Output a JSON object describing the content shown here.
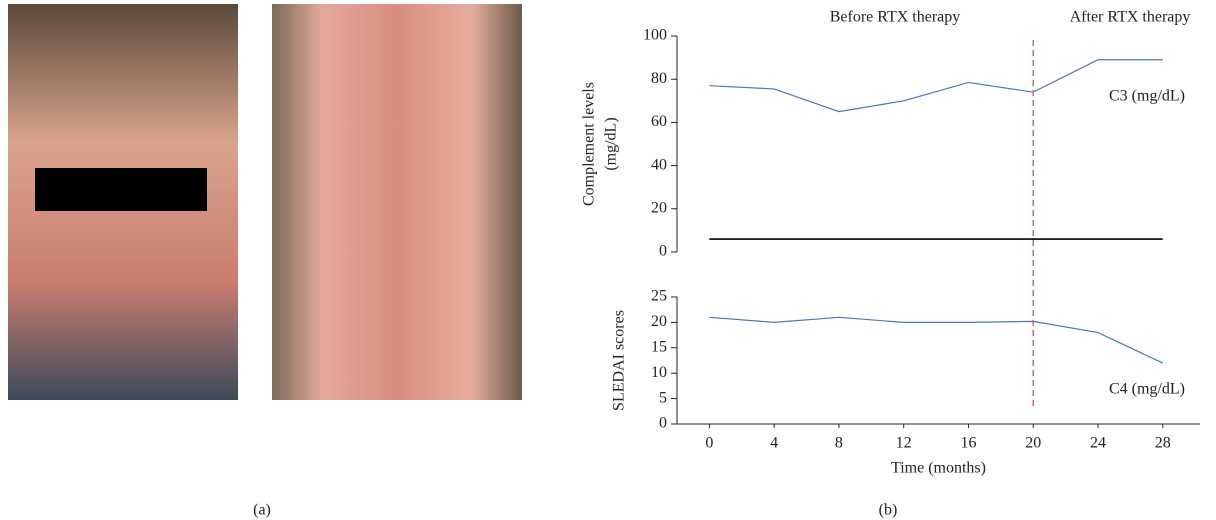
{
  "panel_labels": [
    "(a)",
    "(b)"
  ],
  "chart_data": [
    {
      "type": "line",
      "ylabel": [
        "Complement levels",
        "(mg/dL)"
      ],
      "annotations": [
        "Before RTX therapy",
        "After RTX therapy",
        "C3 (mg/dL)"
      ],
      "x": [
        0,
        4,
        8,
        12,
        16,
        20,
        24,
        28
      ],
      "xlim": [
        -2,
        30.3
      ],
      "series": [
        {
          "name": "C3 (mg/dL)",
          "color": "#4a78b0",
          "values": [
            77,
            75.5,
            65,
            70,
            78.5,
            74,
            89,
            89
          ]
        },
        {
          "color": "#000000",
          "values": [
            6,
            6,
            6,
            6,
            6,
            6,
            6,
            6
          ]
        }
      ],
      "ylim": [
        0,
        100
      ],
      "yticks": [
        0,
        20,
        40,
        60,
        80,
        100
      ],
      "vline_x": 20,
      "vline_color": "#d07070"
    },
    {
      "type": "line",
      "ylabel": "SLEDAI scores",
      "xlabel": "Time (months)",
      "annotations": [
        "C4 (mg/dL)"
      ],
      "x": [
        0,
        4,
        8,
        12,
        16,
        20,
        24,
        28
      ],
      "xlim": [
        -2,
        30.3
      ],
      "xticks": [
        0,
        4,
        8,
        12,
        16,
        20,
        24,
        28
      ],
      "series": [
        {
          "name": "C4 (mg/dL)",
          "color": "#4a78b0",
          "values": [
            21,
            20,
            21,
            20,
            20,
            20.2,
            18,
            12
          ]
        }
      ],
      "ylim": [
        0,
        25
      ],
      "yticks": [
        0,
        5,
        10,
        15,
        20,
        25
      ]
    }
  ]
}
